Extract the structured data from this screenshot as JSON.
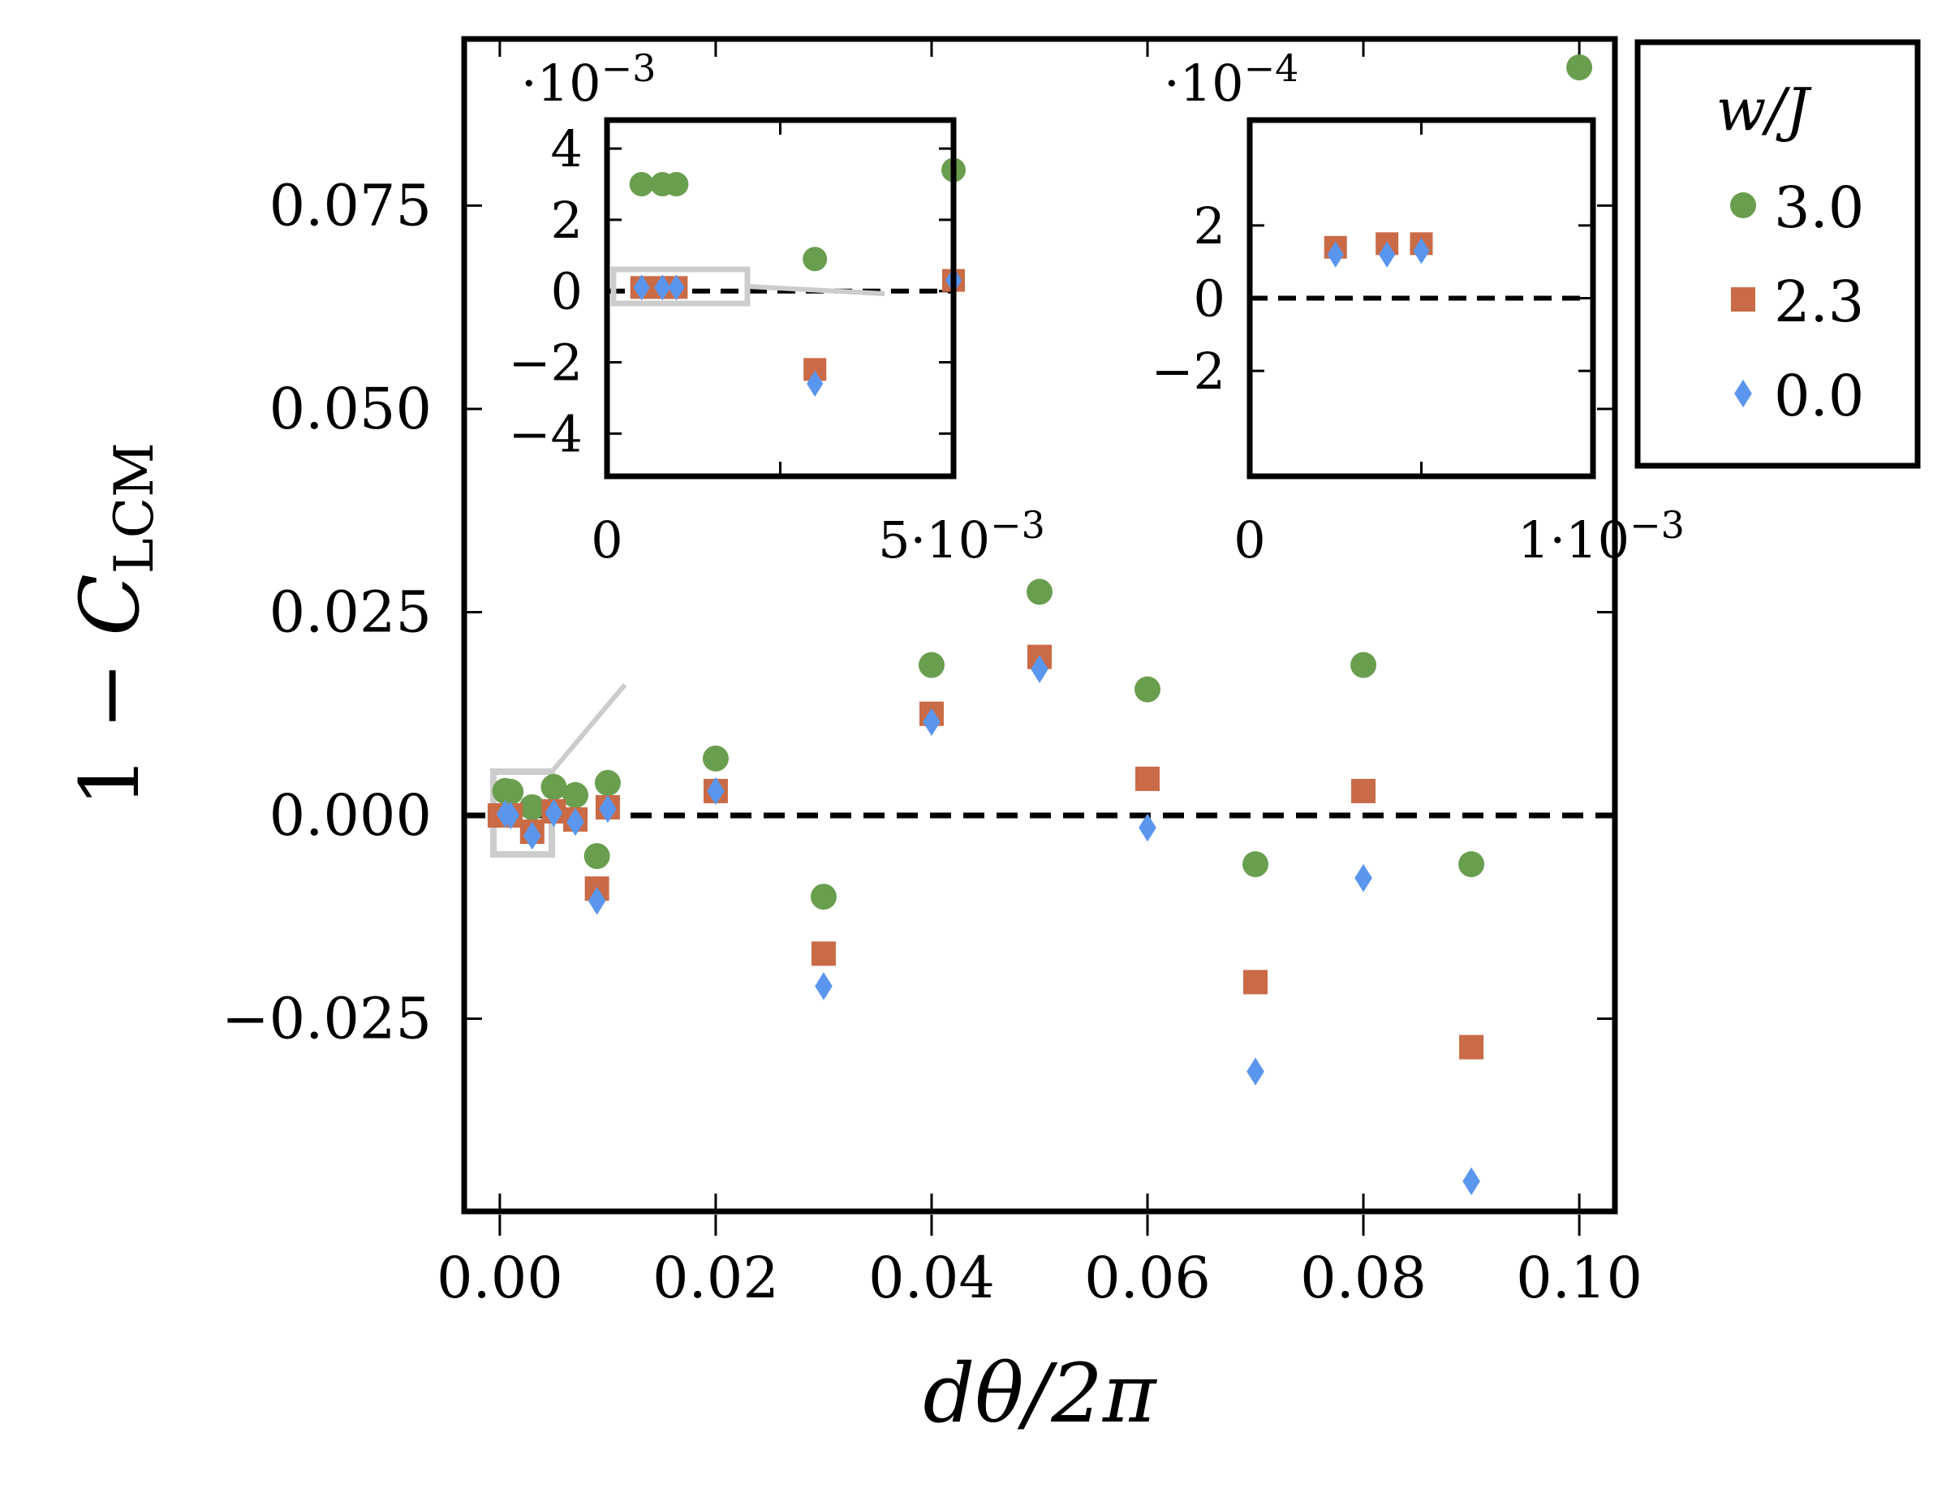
{
  "chart_data": {
    "type": "scatter",
    "xlabel": "dθ/2π",
    "ylabel": {
      "prefix": "1 − ",
      "symbol": "C",
      "subscript": "LCM"
    },
    "xlim": [
      -0.0033,
      0.1033
    ],
    "ylim": [
      -0.0487,
      0.0955
    ],
    "xticks": [
      0.0,
      0.02,
      0.04,
      0.06,
      0.08,
      0.1
    ],
    "xtick_labels": [
      "0.00",
      "0.02",
      "0.04",
      "0.06",
      "0.08",
      "0.10"
    ],
    "yticks": [
      -0.025,
      0.0,
      0.025,
      0.05,
      0.075
    ],
    "ytick_labels": [
      "−0.025",
      "0.000",
      "0.025",
      "0.050",
      "0.075"
    ],
    "reference_line": {
      "y": 0.0,
      "style": "dashed"
    },
    "legend": {
      "title": "w/J",
      "position": "outside-right"
    },
    "series": [
      {
        "name": "3.0",
        "marker": "circle",
        "color": "#6a9e4f",
        "x": [
          0.0005,
          0.001,
          0.003,
          0.005,
          0.007,
          0.01,
          0.009,
          0.02,
          0.03,
          0.04,
          0.05,
          0.06,
          0.07,
          0.08,
          0.09,
          0.1
        ],
        "y": [
          0.003,
          0.0029,
          0.001,
          0.0035,
          0.0025,
          0.004,
          -0.005,
          0.007,
          -0.01,
          0.0185,
          0.0275,
          0.0155,
          -0.006,
          0.0185,
          -0.006,
          0.092
        ]
      },
      {
        "name": "2.3",
        "marker": "square",
        "color": "#c96b47",
        "x": [
          0.0,
          0.001,
          0.003,
          0.005,
          0.007,
          0.01,
          0.009,
          0.02,
          0.03,
          0.04,
          0.05,
          0.06,
          0.07,
          0.08,
          0.09
        ],
        "y": [
          0.0,
          0.0,
          -0.002,
          0.0005,
          -0.0005,
          0.001,
          -0.009,
          0.003,
          -0.017,
          0.0125,
          0.0195,
          0.0045,
          -0.0205,
          0.003,
          -0.0285
        ]
      },
      {
        "name": "0.0",
        "marker": "diamond",
        "color": "#5b96ee",
        "x": [
          0.0005,
          0.001,
          0.003,
          0.005,
          0.007,
          0.01,
          0.009,
          0.02,
          0.03,
          0.04,
          0.05,
          0.06,
          0.07,
          0.08,
          0.09
        ],
        "y": [
          0.0002,
          0.0,
          -0.0025,
          0.0003,
          -0.0008,
          0.0008,
          -0.0105,
          0.003,
          -0.021,
          0.0115,
          0.018,
          -0.0015,
          -0.0315,
          -0.0077,
          -0.045
        ]
      }
    ],
    "insets": [
      {
        "multiplier": "·10−3",
        "xlim": [
          0,
          0.005
        ],
        "ylim": [
          -0.0052,
          0.0048
        ],
        "yticks": [
          4,
          2,
          0,
          -2,
          -4
        ],
        "ytick_labels": [
          "4",
          "2",
          "0",
          "−2",
          "−4"
        ],
        "xtick_labels": [
          "0",
          "5·10−3"
        ],
        "series": [
          {
            "name": "3.0",
            "x": [
              0.0005,
              0.0008,
              0.001,
              0.003,
              0.005
            ],
            "y": [
              0.003,
              0.003,
              0.003,
              0.0009,
              0.0034
            ]
          },
          {
            "name": "2.3",
            "x": [
              0.0005,
              0.0008,
              0.001,
              0.003,
              0.005
            ],
            "y": [
              0.0001,
              0.0001,
              0.0001,
              -0.0022,
              0.0003
            ]
          },
          {
            "name": "0.0",
            "x": [
              0.0005,
              0.0008,
              0.001,
              0.003,
              0.005
            ],
            "y": [
              0.0001,
              0.0001,
              0.0001,
              -0.0026,
              0.0003
            ]
          }
        ]
      },
      {
        "multiplier": "·10−4",
        "xlim": [
          0,
          0.001
        ],
        "ylim": [
          -0.00049,
          0.00049
        ],
        "yticks": [
          2,
          0,
          -2
        ],
        "ytick_labels": [
          "2",
          "0",
          "−2"
        ],
        "xtick_labels": [
          "0",
          "1·10−3"
        ],
        "series": [
          {
            "name": "2.3",
            "x": [
              0.00025,
              0.0004,
              0.0005
            ],
            "y": [
              0.00014,
              0.00015,
              0.00015
            ]
          },
          {
            "name": "0.0",
            "x": [
              0.00025,
              0.0004,
              0.0005
            ],
            "y": [
              0.00012,
              0.00012,
              0.00013
            ]
          }
        ]
      }
    ]
  }
}
